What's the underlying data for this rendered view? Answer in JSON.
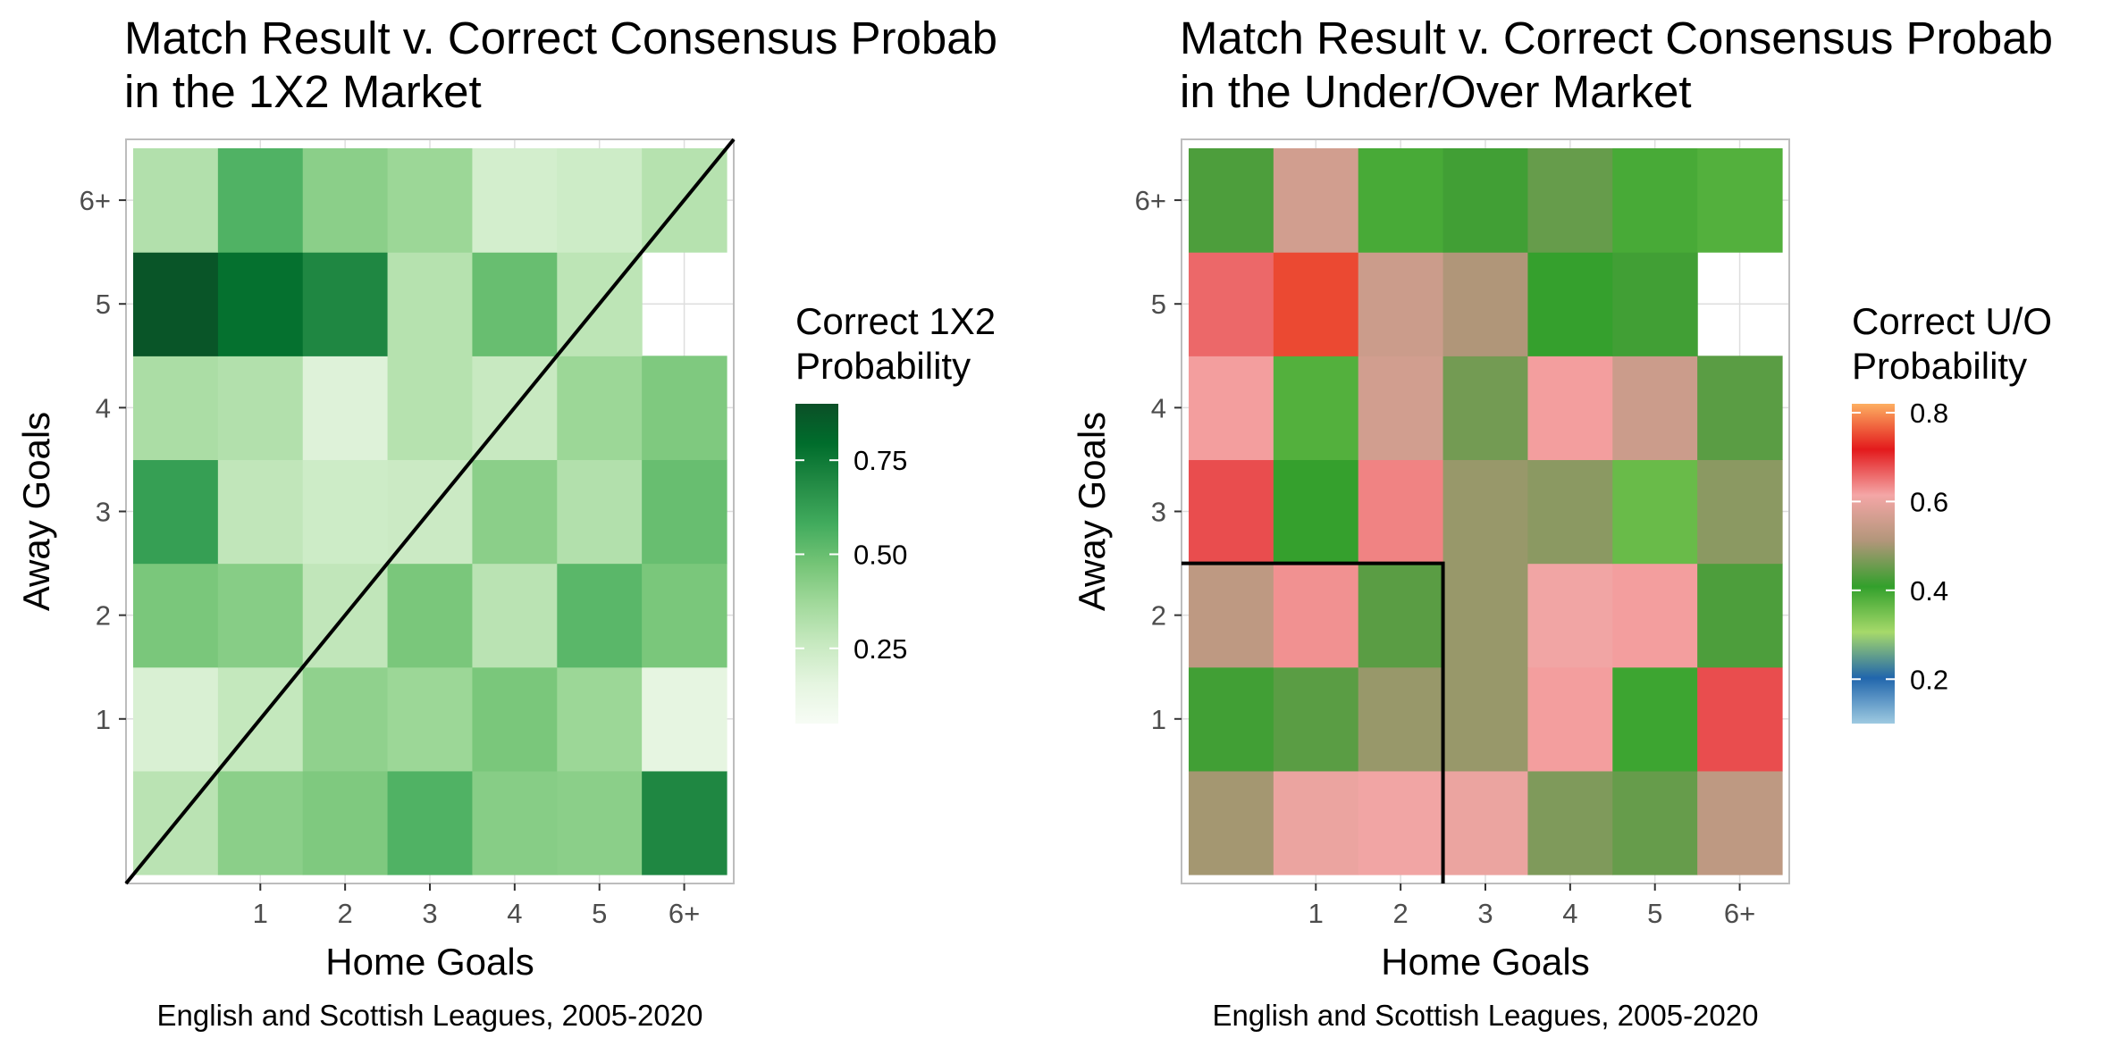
{
  "chart_data": [
    {
      "type": "heatmap",
      "title": "Match Result v. Correct Consensus Probab",
      "subtitle": "in the 1X2 Market",
      "xlabel": "Home Goals",
      "ylabel": "Away Goals",
      "caption": "English and Scottish Leagues, 2005-2020",
      "x_tick_labels": [
        "1",
        "2",
        "3",
        "4",
        "5",
        "6+"
      ],
      "y_tick_labels": [
        "1",
        "2",
        "3",
        "4",
        "5",
        "6+"
      ],
      "x_categories": [
        "0",
        "1",
        "2",
        "3",
        "4",
        "5",
        "6+"
      ],
      "y_categories": [
        "0",
        "1",
        "2",
        "3",
        "4",
        "5",
        "6+"
      ],
      "legend": {
        "title_line1": "Correct 1X2",
        "title_line2": "Probability",
        "placement": "right",
        "ticks": [
          "0.75",
          "0.50",
          "0.25"
        ],
        "tick_values": [
          0.75,
          0.5,
          0.25
        ],
        "range": [
          0.05,
          0.9
        ],
        "colors": [
          "#f7fcf5",
          "#e5f5e0",
          "#c7e9c0",
          "#a1d99b",
          "#74c476",
          "#41ab5d",
          "#238b45",
          "#006d2c",
          "#0b4f27"
        ]
      },
      "values": [
        [
          0.3,
          0.42,
          0.45,
          0.55,
          0.43,
          0.42,
          0.7
        ],
        [
          0.2,
          0.27,
          0.41,
          0.38,
          0.46,
          0.38,
          0.15
        ],
        [
          0.46,
          0.43,
          0.28,
          0.46,
          0.3,
          0.53,
          0.46
        ],
        [
          0.62,
          0.28,
          0.24,
          0.25,
          0.42,
          0.32,
          0.5
        ],
        [
          0.34,
          0.32,
          0.18,
          0.31,
          0.26,
          0.38,
          0.45
        ],
        [
          0.88,
          0.78,
          0.7,
          0.31,
          0.5,
          0.29,
          null
        ],
        [
          0.32,
          0.55,
          0.42,
          0.38,
          0.22,
          0.24,
          0.31
        ]
      ],
      "boundary": "diagonal"
    },
    {
      "type": "heatmap",
      "title": "Match Result v. Correct Consensus Probab",
      "subtitle": "in the Under/Over Market",
      "xlabel": "Home Goals",
      "ylabel": "Away Goals",
      "caption": "English and Scottish Leagues, 2005-2020",
      "x_tick_labels": [
        "1",
        "2",
        "3",
        "4",
        "5",
        "6+"
      ],
      "y_tick_labels": [
        "1",
        "2",
        "3",
        "4",
        "5",
        "6+"
      ],
      "x_categories": [
        "0",
        "1",
        "2",
        "3",
        "4",
        "5",
        "6+"
      ],
      "y_categories": [
        "0",
        "1",
        "2",
        "3",
        "4",
        "5",
        "6+"
      ],
      "legend": {
        "title_line1": "Correct U/O",
        "title_line2": "Probability",
        "placement": "right",
        "ticks": [
          "0.8",
          "0.6",
          "0.4",
          "0.2"
        ],
        "tick_values": [
          0.8,
          0.6,
          0.4,
          0.2
        ],
        "range": [
          0.1,
          0.82
        ],
        "colors": [
          "#9ecae1",
          "#2166ac",
          "#a6d96a",
          "#33a02c",
          "#b2967a",
          "#f4a6a6",
          "#e31a1c",
          "#fdae61"
        ]
      },
      "values": [
        [
          0.5,
          0.6,
          0.61,
          0.6,
          0.47,
          0.45,
          0.53
        ],
        [
          0.42,
          0.44,
          0.49,
          0.49,
          0.62,
          0.4,
          0.68
        ],
        [
          0.53,
          0.63,
          0.44,
          0.49,
          0.61,
          0.62,
          0.43
        ],
        [
          0.68,
          0.41,
          0.64,
          0.49,
          0.48,
          0.36,
          0.48
        ],
        [
          0.62,
          0.38,
          0.56,
          0.46,
          0.62,
          0.55,
          0.44
        ],
        [
          0.66,
          0.75,
          0.55,
          0.51,
          0.41,
          0.42,
          null
        ],
        [
          0.43,
          0.56,
          0.39,
          0.42,
          0.45,
          0.39,
          0.38
        ]
      ],
      "boundary": "corner_2_2"
    }
  ]
}
